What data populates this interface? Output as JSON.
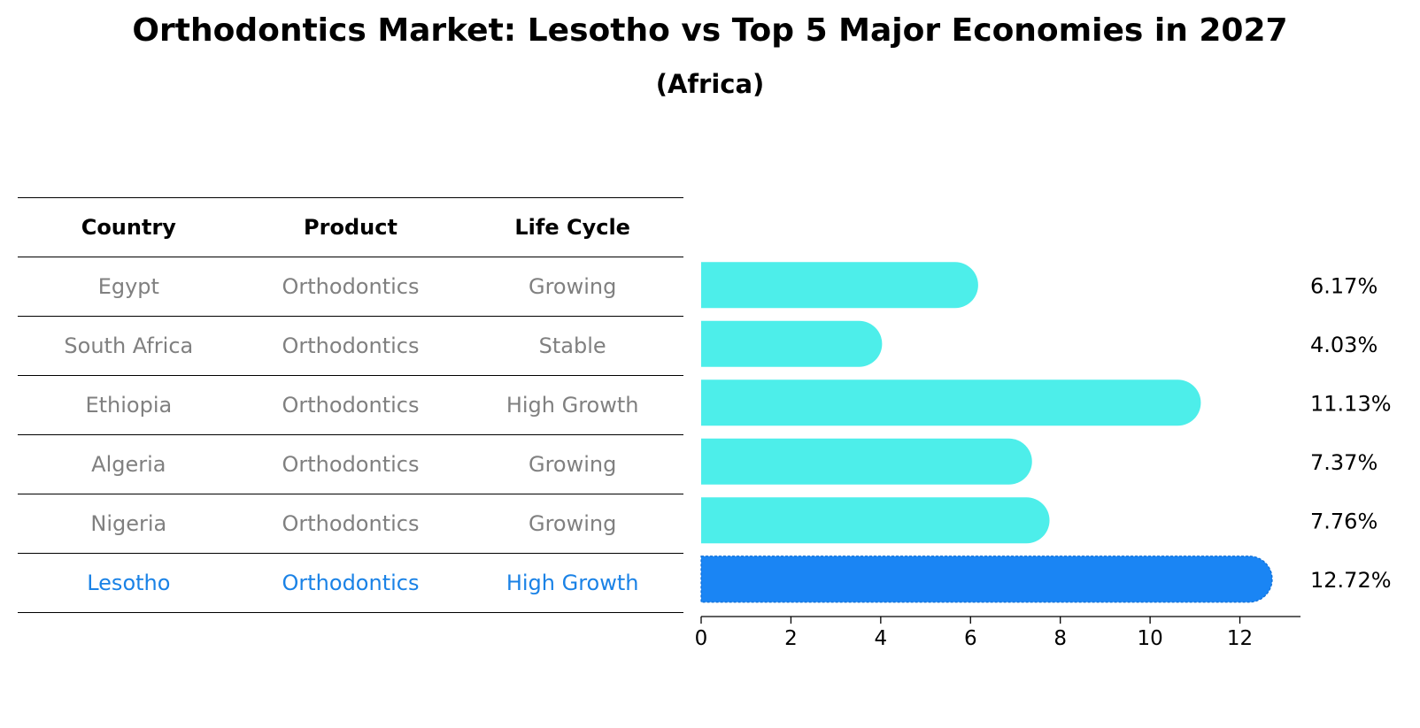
{
  "title": "Orthodontics Market: Lesotho vs Top 5 Major Economies in 2027",
  "subtitle": "(Africa)",
  "table": {
    "headers": [
      "Country",
      "Product",
      "Life Cycle"
    ],
    "rows": [
      {
        "country": "Egypt",
        "product": "Orthodontics",
        "life_cycle": "Growing"
      },
      {
        "country": "South Africa",
        "product": "Orthodontics",
        "life_cycle": "Stable"
      },
      {
        "country": "Ethiopia",
        "product": "Orthodontics",
        "life_cycle": "High Growth"
      },
      {
        "country": "Algeria",
        "product": "Orthodontics",
        "life_cycle": "Growing"
      },
      {
        "country": "Nigeria",
        "product": "Orthodontics",
        "life_cycle": "Growing"
      },
      {
        "country": "Lesotho",
        "product": "Orthodontics",
        "life_cycle": "High Growth"
      }
    ]
  },
  "chart_data": {
    "type": "bar",
    "orientation": "horizontal",
    "categories": [
      "Egypt",
      "South Africa",
      "Ethiopia",
      "Algeria",
      "Nigeria",
      "Lesotho"
    ],
    "values": [
      6.17,
      4.03,
      11.13,
      7.37,
      7.76,
      12.72
    ],
    "value_labels": [
      "6.17%",
      "4.03%",
      "11.13%",
      "7.37%",
      "7.76%",
      "12.72%"
    ],
    "highlight": "Lesotho",
    "xlim": [
      0,
      13.35
    ],
    "xticks": [
      0,
      2,
      4,
      6,
      8,
      10,
      12
    ],
    "colors": {
      "default": "#4deeea",
      "highlight": "#1a85f4",
      "highlight_text": "#1a82e6"
    }
  }
}
